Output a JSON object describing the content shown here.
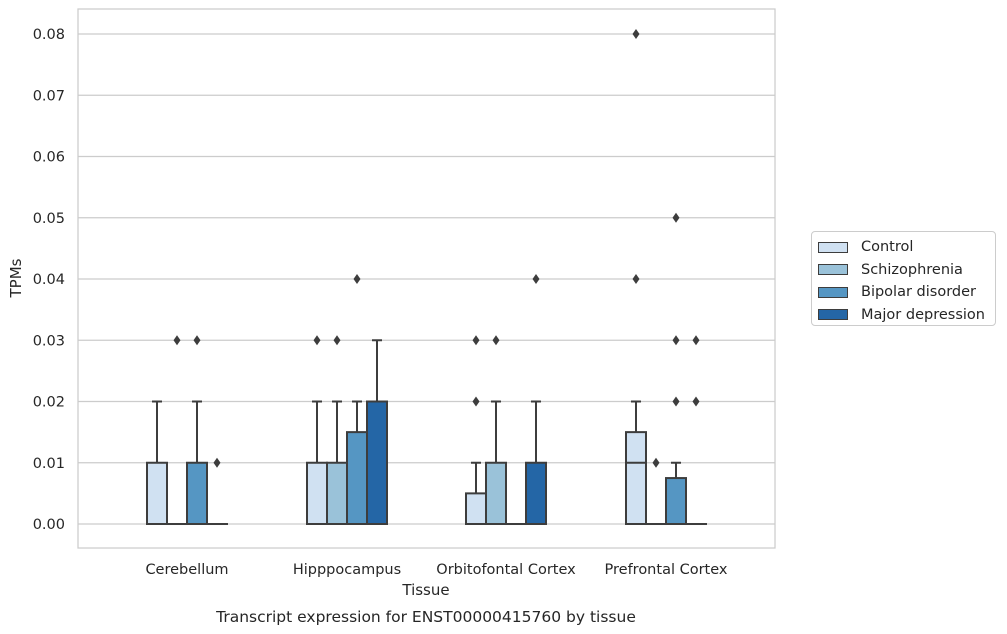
{
  "chart_data": {
    "type": "box",
    "title": "",
    "caption": "Transcript expression for ENST00000415760 by tissue",
    "xlabel": "Tissue",
    "ylabel": "TPMs",
    "ylim": [
      -0.004,
      0.084
    ],
    "yticks": [
      "0.00",
      "0.01",
      "0.02",
      "0.03",
      "0.04",
      "0.05",
      "0.06",
      "0.07",
      "0.08"
    ],
    "grid": "horizontal",
    "legend_position": "right",
    "categories": [
      "Cerebellum",
      "Hipppocampus",
      "Orbitofontal Cortex",
      "Prefrontal Cortex"
    ],
    "series": [
      {
        "name": "Control",
        "color": "#d0e1f2",
        "boxes": [
          {
            "q1": 0.0,
            "median": 0.0,
            "q3": 0.01,
            "whisker_low": 0.0,
            "whisker_high": 0.02,
            "outliers": []
          },
          {
            "q1": 0.0,
            "median": 0.0,
            "q3": 0.01,
            "whisker_low": 0.0,
            "whisker_high": 0.02,
            "outliers": [
              0.03
            ]
          },
          {
            "q1": 0.0,
            "median": 0.0,
            "q3": 0.005,
            "whisker_low": 0.0,
            "whisker_high": 0.01,
            "outliers": [
              0.02,
              0.03
            ]
          },
          {
            "q1": 0.0,
            "median": 0.01,
            "q3": 0.015,
            "whisker_low": 0.0,
            "whisker_high": 0.02,
            "outliers": [
              0.04,
              0.08
            ]
          }
        ]
      },
      {
        "name": "Schizophrenia",
        "color": "#9ac2d9",
        "boxes": [
          {
            "q1": 0.0,
            "median": 0.0,
            "q3": 0.0,
            "whisker_low": 0.0,
            "whisker_high": 0.0,
            "outliers": [
              0.03
            ]
          },
          {
            "q1": 0.0,
            "median": 0.0,
            "q3": 0.01,
            "whisker_low": 0.0,
            "whisker_high": 0.02,
            "outliers": [
              0.03
            ]
          },
          {
            "q1": 0.0,
            "median": 0.0,
            "q3": 0.01,
            "whisker_low": 0.0,
            "whisker_high": 0.02,
            "outliers": [
              0.03
            ]
          },
          {
            "q1": 0.0,
            "median": 0.0,
            "q3": 0.0,
            "whisker_low": 0.0,
            "whisker_high": 0.0,
            "outliers": [
              0.01
            ]
          }
        ]
      },
      {
        "name": "Bipolar disorder",
        "color": "#5596c3",
        "boxes": [
          {
            "q1": 0.0,
            "median": 0.0,
            "q3": 0.01,
            "whisker_low": 0.0,
            "whisker_high": 0.02,
            "outliers": [
              0.03
            ]
          },
          {
            "q1": 0.0,
            "median": 0.0,
            "q3": 0.015,
            "whisker_low": 0.0,
            "whisker_high": 0.02,
            "outliers": [
              0.04
            ]
          },
          {
            "q1": 0.0,
            "median": 0.0,
            "q3": 0.0,
            "whisker_low": 0.0,
            "whisker_high": 0.0,
            "outliers": []
          },
          {
            "q1": 0.0,
            "median": 0.0,
            "q3": 0.0075,
            "whisker_low": 0.0,
            "whisker_high": 0.01,
            "outliers": [
              0.02,
              0.03,
              0.05
            ]
          }
        ]
      },
      {
        "name": "Major depression",
        "color": "#2466a6",
        "boxes": [
          {
            "q1": 0.0,
            "median": 0.0,
            "q3": 0.0,
            "whisker_low": 0.0,
            "whisker_high": 0.0,
            "outliers": [
              0.01
            ]
          },
          {
            "q1": 0.0,
            "median": 0.0,
            "q3": 0.02,
            "whisker_low": 0.0,
            "whisker_high": 0.03,
            "outliers": []
          },
          {
            "q1": 0.0,
            "median": 0.0,
            "q3": 0.01,
            "whisker_low": 0.0,
            "whisker_high": 0.02,
            "outliers": [
              0.04
            ]
          },
          {
            "q1": 0.0,
            "median": 0.0,
            "q3": 0.0,
            "whisker_low": 0.0,
            "whisker_high": 0.0,
            "outliers": [
              0.02,
              0.03
            ]
          }
        ]
      }
    ]
  }
}
